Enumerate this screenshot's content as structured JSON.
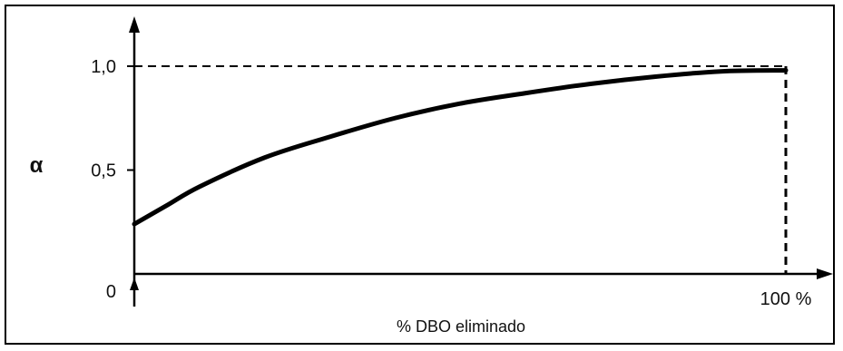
{
  "chart_data": {
    "type": "line",
    "title": "",
    "xlabel": "% DBO eliminado",
    "ylabel": "α",
    "x_unit": "%",
    "xlim": [
      0,
      100
    ],
    "ylim": [
      0,
      1.0
    ],
    "y_ticks": [
      {
        "value": 0,
        "label": "0"
      },
      {
        "value": 0.5,
        "label": "0,5"
      },
      {
        "value": 1.0,
        "label": "1,0"
      }
    ],
    "x_ticks": [
      {
        "value": 100,
        "label": "100 %"
      }
    ],
    "series": [
      {
        "x": [
          0,
          5,
          10,
          20,
          30,
          40,
          50,
          60,
          70,
          80,
          90,
          100
        ],
        "y": [
          0.24,
          0.33,
          0.42,
          0.56,
          0.66,
          0.75,
          0.82,
          0.87,
          0.915,
          0.95,
          0.975,
          0.98
        ]
      }
    ],
    "reference_lines": [
      "y = 1,0",
      "x = 100 %"
    ],
    "grid": false,
    "colors": {
      "line": "#000000",
      "background": "#ffffff"
    }
  }
}
